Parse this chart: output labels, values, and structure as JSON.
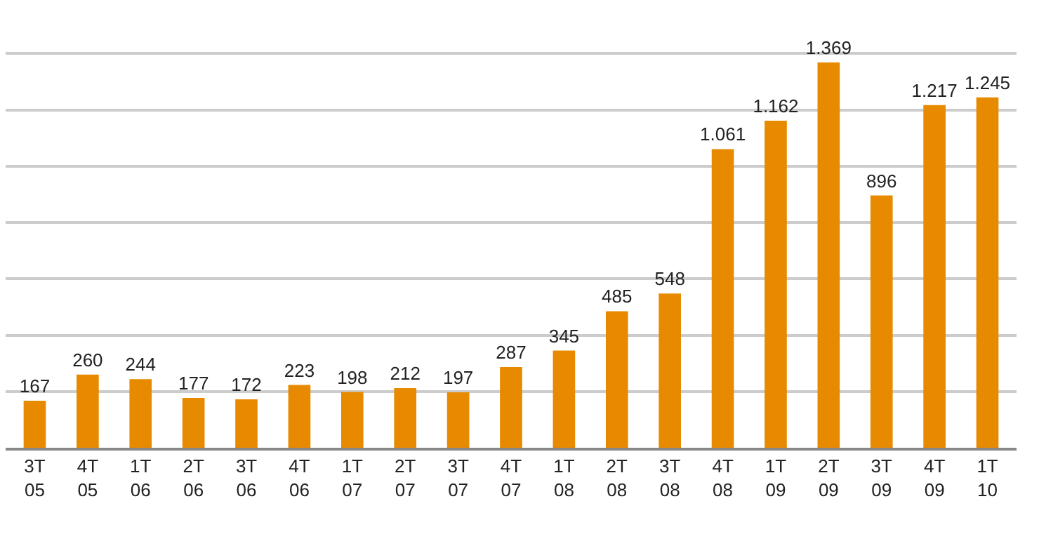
{
  "chart_data": {
    "type": "bar",
    "categories": [
      "3T 05",
      "4T 05",
      "1T 06",
      "2T 06",
      "3T 06",
      "4T 06",
      "1T 07",
      "2T 07",
      "3T 07",
      "4T 07",
      "1T 08",
      "2T 08",
      "3T 08",
      "4T 08",
      "1T 09",
      "2T 09",
      "3T 09",
      "4T 09",
      "1T 10"
    ],
    "values": [
      167,
      260,
      244,
      177,
      172,
      223,
      198,
      212,
      197,
      287,
      345,
      485,
      548,
      1061,
      1162,
      1369,
      896,
      1217,
      1245
    ],
    "value_labels": [
      "167",
      "260",
      "244",
      "177",
      "172",
      "223",
      "198",
      "212",
      "197",
      "287",
      "345",
      "485",
      "548",
      "1.061",
      "1.162",
      "1.369",
      "896",
      "1.217",
      "1.245"
    ],
    "color": "#e88a00",
    "grid": "y"
  }
}
